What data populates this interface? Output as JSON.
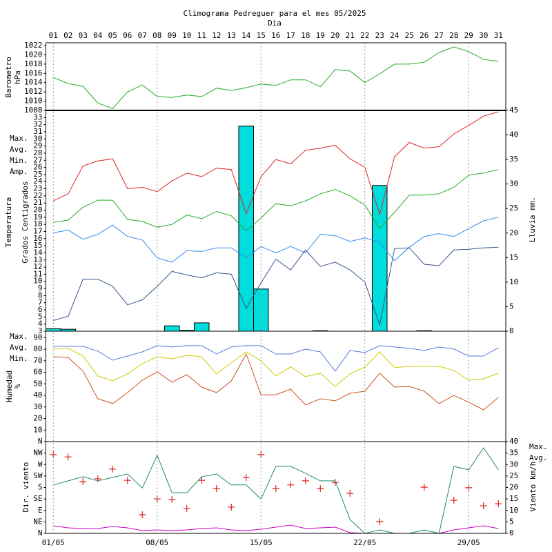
{
  "chart_data": [
    {
      "type": "line",
      "title": "Climograma Pedreguer para el mes 05/2025",
      "xlabel": "Dia",
      "categories": [
        "01",
        "02",
        "03",
        "04",
        "05",
        "06",
        "07",
        "08",
        "09",
        "10",
        "11",
        "12",
        "13",
        "14",
        "15",
        "16",
        "17",
        "18",
        "19",
        "20",
        "21",
        "22",
        "23",
        "24",
        "25",
        "26",
        "27",
        "28",
        "29",
        "30",
        "31"
      ],
      "ylabel": [
        "Barometro",
        "hPa"
      ],
      "ylim": [
        1008,
        1022.6
      ],
      "yticks": [
        1008,
        1010,
        1012,
        1014,
        1016,
        1018,
        1020,
        1022
      ],
      "series": [
        {
          "type": "line",
          "color": "#22aa22",
          "values": [
            1015.1,
            1013.8,
            1013.2,
            1009.6,
            1008.4,
            1012,
            1013.5,
            1011,
            1010.8,
            1011.3,
            1011,
            1012.8,
            1012.3,
            1012.9,
            1013.7,
            1013.4,
            1014.6,
            1014.6,
            1013.1,
            1016.8,
            1016.5,
            1014,
            1015.9,
            1018,
            1018,
            1018.4,
            1020.5,
            1021.7,
            1020.7,
            1019,
            1018.6
          ]
        }
      ]
    },
    {
      "type": "combo",
      "ylabel": [
        "Temperatura",
        "Grados Centigrados"
      ],
      "y2label": "Lluvia mm.",
      "legend": "left",
      "ylim": [
        3,
        34
      ],
      "yticks": [
        3,
        4,
        5,
        6,
        7,
        8,
        9,
        10,
        11,
        12,
        13,
        14,
        15,
        16,
        17,
        18,
        19,
        20,
        21,
        22,
        23,
        24,
        25,
        26,
        27,
        28,
        29,
        30,
        31,
        32,
        33
      ],
      "y2lim": [
        0,
        45
      ],
      "y2ticks": [
        0,
        5,
        10,
        15,
        20,
        25,
        30,
        35,
        40,
        45
      ],
      "series": [
        {
          "type": "bar",
          "axis": "y2",
          "color": "#00dddd",
          "values": [
            0.5,
            0.4,
            0,
            0,
            0,
            0,
            0,
            0,
            1.1,
            0.2,
            1.7,
            0,
            0,
            41.8,
            8.6,
            0,
            0,
            0,
            0.1,
            0,
            0,
            0,
            29.7,
            0,
            0,
            0.1,
            0,
            0,
            0,
            0,
            0
          ]
        },
        {
          "name": "Max.",
          "type": "line",
          "color": "#dd2222",
          "values": [
            21.3,
            22.3,
            26.2,
            26.9,
            27.2,
            23,
            23.2,
            22.6,
            24.1,
            25.2,
            24.7,
            25.9,
            25.7,
            19.5,
            24.7,
            27.1,
            26.5,
            28.4,
            28.7,
            29.1,
            27.2,
            26,
            19.4,
            27.5,
            29.5,
            28.7,
            28.9,
            30.7,
            31.9,
            33.2,
            33.8
          ]
        },
        {
          "name": "Avg.",
          "type": "line",
          "color": "#22aa22",
          "values": [
            18.3,
            18.6,
            20.4,
            21.4,
            21.4,
            18.7,
            18.4,
            17.6,
            18,
            19.3,
            18.8,
            19.8,
            19.2,
            17.1,
            18.9,
            20.9,
            20.6,
            21.3,
            22.3,
            22.9,
            22,
            20.7,
            17.4,
            19.7,
            22.1,
            22.1,
            22.3,
            23.2,
            24.9,
            25.2,
            25.7
          ]
        },
        {
          "name": "Min.",
          "type": "line",
          "color": "#3388ee",
          "values": [
            16.8,
            17.2,
            15.9,
            16.6,
            17.9,
            16.3,
            15.8,
            13.3,
            12.7,
            14.3,
            14.2,
            14.7,
            14.7,
            13.3,
            14.9,
            14,
            14.9,
            14,
            16.6,
            16.4,
            15.6,
            16.1,
            15.5,
            12.9,
            14.8,
            16.3,
            16.7,
            16.3,
            17.4,
            18.5,
            19
          ]
        },
        {
          "name": "Amp.",
          "type": "line",
          "color": "#335588",
          "values": [
            4.5,
            5.1,
            10.3,
            10.3,
            9.3,
            6.7,
            7.4,
            9.3,
            11.4,
            10.9,
            10.5,
            11.2,
            11,
            6.2,
            9.8,
            13.1,
            11.6,
            14.4,
            12.1,
            12.7,
            11.6,
            9.9,
            3.9,
            14.6,
            14.7,
            12.4,
            12.2,
            14.4,
            14.5,
            14.7,
            14.8
          ]
        }
      ]
    },
    {
      "type": "line",
      "ylabel": [
        "Humedad",
        "%"
      ],
      "legend": "left",
      "ylim": [
        0,
        95.6
      ],
      "yticks": [
        10,
        20,
        30,
        40,
        50,
        60,
        70,
        80,
        90
      ],
      "series": [
        {
          "name": "Max.",
          "type": "line",
          "color": "#5577dd",
          "values": [
            82.5,
            82.5,
            82.5,
            78.3,
            70.5,
            74.1,
            77.7,
            83.1,
            81.9,
            83.1,
            83.1,
            75.9,
            81.9,
            83.1,
            83.1,
            75.9,
            75.9,
            80.1,
            77.7,
            61,
            78.9,
            77.1,
            83.1,
            81.9,
            80.7,
            78.9,
            81.9,
            80.1,
            74.1,
            74.1,
            81.3
          ]
        },
        {
          "name": "Avg.",
          "type": "line",
          "color": "#cccc00",
          "values": [
            80.1,
            80.7,
            74.1,
            56.8,
            52.6,
            58.6,
            67.5,
            73.5,
            71.7,
            74.7,
            73.5,
            58.6,
            68.1,
            77.7,
            69.9,
            56.8,
            64.6,
            56.2,
            59.2,
            47.8,
            58.6,
            64.6,
            77.7,
            64,
            65.2,
            65.2,
            65.2,
            61.6,
            53.2,
            54.4,
            59.2
          ]
        },
        {
          "name": "Min.",
          "type": "line",
          "color": "#cc5522",
          "values": [
            73.5,
            72.9,
            61,
            37.1,
            32.9,
            42.4,
            53.2,
            60.4,
            51.4,
            58,
            47.2,
            42.4,
            52.6,
            75.9,
            40.6,
            40.6,
            45.4,
            31.7,
            37.1,
            35.3,
            41.8,
            43.6,
            59.2,
            47.2,
            47.8,
            43.6,
            32.9,
            40,
            34.1,
            27.5,
            38.3
          ]
        }
      ]
    },
    {
      "type": "combo",
      "ylabel": [
        "Dir. viento"
      ],
      "y2label": "Viento km/h",
      "legend": "right",
      "grid": true,
      "ylim": [
        0,
        360
      ],
      "yticks": [
        {
          "value": 0,
          "label": "N"
        },
        {
          "value": 45,
          "label": "NE"
        },
        {
          "value": 90,
          "label": "E"
        },
        {
          "value": 135,
          "label": "SE"
        },
        {
          "value": 180,
          "label": "S"
        },
        {
          "value": 225,
          "label": "SW"
        },
        {
          "value": 270,
          "label": "W"
        },
        {
          "value": 315,
          "label": "NW"
        },
        {
          "value": 360,
          "label": "N"
        }
      ],
      "y2lim": [
        0,
        40
      ],
      "y2ticks": [
        0,
        5,
        10,
        15,
        20,
        25,
        30,
        35,
        40
      ],
      "xticks": [
        {
          "value": 1,
          "label": "01/05"
        },
        {
          "value": 8,
          "label": "08/05"
        },
        {
          "value": 15,
          "label": "15/05"
        },
        {
          "value": 22,
          "label": "22/05"
        },
        {
          "value": 29,
          "label": "29/05"
        }
      ],
      "series": [
        {
          "type": "scatter",
          "color": "#dd2222",
          "values": [
            309,
            300,
            203,
            214,
            252,
            208,
            73,
            135,
            133,
            97,
            208,
            176,
            103,
            219,
            309,
            176,
            190,
            206,
            176,
            200,
            157,
            null,
            46,
            null,
            null,
            181,
            null,
            130,
            179,
            108,
            116
          ]
        },
        {
          "name": "Max.",
          "type": "line",
          "axis": "y2",
          "color": "#228866",
          "values": [
            21.1,
            22.9,
            24.7,
            22.9,
            24.4,
            25.9,
            19.8,
            34,
            17.7,
            17.7,
            24.7,
            25.9,
            21.1,
            21.1,
            15,
            29.2,
            29.2,
            26.2,
            22.9,
            22.9,
            6,
            0,
            1.5,
            0,
            0,
            1.5,
            0,
            29.2,
            27.7,
            37.3,
            27.7
          ]
        },
        {
          "name": "Avg.",
          "type": "line",
          "axis": "y2",
          "color": "#cc00cc",
          "values": [
            3.3,
            2.4,
            2.1,
            2.1,
            3,
            2.4,
            1.2,
            1.5,
            1.2,
            1.5,
            2.1,
            2.4,
            1.5,
            1.2,
            1.8,
            2.7,
            3.6,
            2.1,
            2.4,
            2.7,
            0.3,
            0,
            0,
            0,
            0,
            0,
            0,
            1.5,
            2.4,
            3.3,
            2.1
          ]
        }
      ]
    }
  ]
}
